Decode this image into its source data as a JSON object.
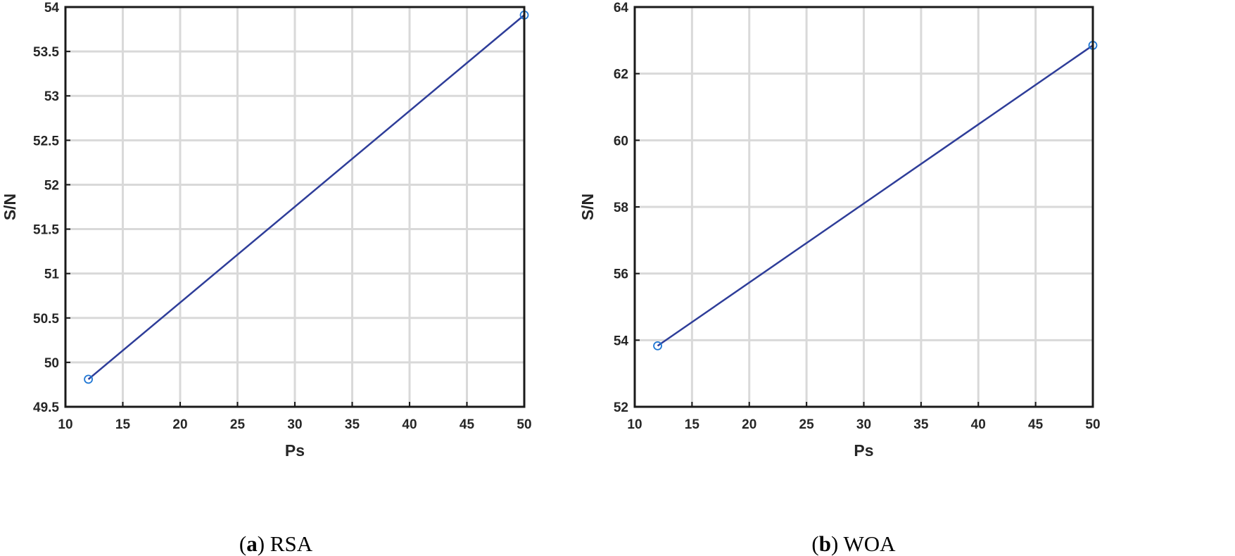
{
  "chart_data": [
    {
      "type": "line",
      "caption": {
        "letter": "a",
        "name": "RSA"
      },
      "xlabel": "Ps",
      "ylabel": "S/N",
      "xlim": [
        10,
        50
      ],
      "ylim": [
        49.5,
        54
      ],
      "xticks": [
        10,
        15,
        20,
        25,
        30,
        35,
        40,
        45,
        50
      ],
      "yticks": [
        49.5,
        50,
        50.5,
        51,
        51.5,
        52,
        52.5,
        53,
        53.5,
        54
      ],
      "ytick_labels": [
        "49.5",
        "50",
        "50.5",
        "51",
        "51.5",
        "52",
        "52.5",
        "53",
        "53.5",
        "54"
      ],
      "grid": true,
      "line_color": "#2E3D99",
      "marker_color": "#1F77D4",
      "series": [
        {
          "x": [
            12,
            50
          ],
          "y": [
            49.81,
            53.91
          ]
        }
      ]
    },
    {
      "type": "line",
      "caption": {
        "letter": "b",
        "name": "WOA"
      },
      "xlabel": "Ps",
      "ylabel": "S/N",
      "xlim": [
        10,
        50
      ],
      "ylim": [
        52,
        64
      ],
      "xticks": [
        10,
        15,
        20,
        25,
        30,
        35,
        40,
        45,
        50
      ],
      "yticks": [
        52,
        54,
        56,
        58,
        60,
        62,
        64
      ],
      "ytick_labels": [
        "52",
        "54",
        "56",
        "58",
        "60",
        "62",
        "64"
      ],
      "grid": true,
      "line_color": "#2E3D99",
      "marker_color": "#1F77D4",
      "series": [
        {
          "x": [
            12,
            50
          ],
          "y": [
            53.83,
            62.85
          ]
        }
      ]
    }
  ]
}
